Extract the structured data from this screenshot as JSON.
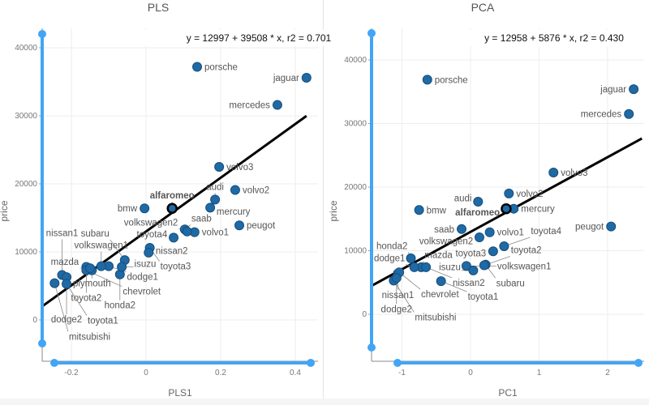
{
  "chart_data": [
    {
      "type": "scatter",
      "title": "PLS",
      "xlabel": "PLS1",
      "ylabel": "price",
      "equation": "y = 12997 + 39508 * x,    r2 = 0.701",
      "fit": {
        "intercept": 12997,
        "slope": 39508,
        "r2": 0.701
      },
      "xlim": [
        -0.28,
        0.43
      ],
      "ylim": [
        -6000,
        42000
      ],
      "xticks": [
        -0.2,
        0,
        0.2,
        0.4
      ],
      "xtick_labels": [
        "-0.2",
        "0",
        "0.2",
        "0.4"
      ],
      "yticks": [
        0,
        10000,
        20000,
        30000,
        40000
      ],
      "ytick_labels": [
        "0",
        "10000",
        "20000",
        "30000",
        "40000"
      ],
      "grid": true,
      "highlighted": "alfaromeo",
      "point_color": "#1f6aa5",
      "slider_color": "#42a5f5",
      "points": [
        {
          "name": "porsche",
          "x": 0.137,
          "y": 37200
        },
        {
          "name": "jaguar",
          "x": 0.43,
          "y": 35600
        },
        {
          "name": "mercedes",
          "x": 0.352,
          "y": 31600
        },
        {
          "name": "volvo3",
          "x": 0.196,
          "y": 22500
        },
        {
          "name": "volvo2",
          "x": 0.239,
          "y": 19100
        },
        {
          "name": "audi",
          "x": 0.185,
          "y": 17700
        },
        {
          "name": "bmw",
          "x": -0.004,
          "y": 16400
        },
        {
          "name": "alfaromeo",
          "x": 0.07,
          "y": 16400
        },
        {
          "name": "mercury",
          "x": 0.172,
          "y": 16500
        },
        {
          "name": "peugot",
          "x": 0.25,
          "y": 13900
        },
        {
          "name": "saab",
          "x": 0.104,
          "y": 13300
        },
        {
          "name": "volvo1",
          "x": 0.13,
          "y": 12900
        },
        {
          "name": "toyota4",
          "x": 0.074,
          "y": 12100
        },
        {
          "name": "volkswagen2",
          "x": 0.11,
          "y": 13000
        },
        {
          "name": "toyota3",
          "x": 0.01,
          "y": 10600
        },
        {
          "name": "honda2",
          "x": -0.07,
          "y": 6700
        },
        {
          "name": "dodge1",
          "x": -0.1,
          "y": 7900
        },
        {
          "name": "volkswagen1",
          "x": -0.12,
          "y": 7900
        },
        {
          "name": "subaru",
          "x": -0.057,
          "y": 8800
        },
        {
          "name": "isuzu",
          "x": -0.065,
          "y": 7800
        },
        {
          "name": "toyota2",
          "x": -0.16,
          "y": 7800
        },
        {
          "name": "chevrolet",
          "x": -0.16,
          "y": 7300
        },
        {
          "name": "plymouth",
          "x": -0.145,
          "y": 7300
        },
        {
          "name": "mazda",
          "x": -0.15,
          "y": 7600
        },
        {
          "name": "nissan2",
          "x": 0.007,
          "y": 9900
        },
        {
          "name": "nissan1",
          "x": -0.225,
          "y": 6600
        },
        {
          "name": "dodge2",
          "x": -0.213,
          "y": 6300
        },
        {
          "name": "mitsubishi",
          "x": -0.245,
          "y": 5400
        },
        {
          "name": "toyota1",
          "x": -0.213,
          "y": 5300
        }
      ]
    },
    {
      "type": "scatter",
      "title": "PCA",
      "xlabel": "PC1",
      "ylabel": "price",
      "equation": "y = 12958 + 5876 * x,    r2 = 0.430",
      "fit": {
        "intercept": 12958,
        "slope": 5876,
        "r2": 0.43
      },
      "xlim": [
        -1.45,
        2.5
      ],
      "ylim": [
        -7000,
        44000
      ],
      "xticks": [
        -1,
        0,
        1,
        2
      ],
      "xtick_labels": [
        "-1",
        "0",
        "1",
        "2"
      ],
      "yticks": [
        0,
        10000,
        20000,
        30000,
        40000
      ],
      "ytick_labels": [
        "0",
        "10000",
        "20000",
        "30000",
        "40000"
      ],
      "grid": true,
      "highlighted": "alfaromeo",
      "point_color": "#1f6aa5",
      "slider_color": "#42a5f5",
      "points": [
        {
          "name": "porsche",
          "x": -0.63,
          "y": 36900
        },
        {
          "name": "jaguar",
          "x": 2.38,
          "y": 35400
        },
        {
          "name": "mercedes",
          "x": 2.31,
          "y": 31500
        },
        {
          "name": "volvo3",
          "x": 1.21,
          "y": 22300
        },
        {
          "name": "volvo2",
          "x": 0.56,
          "y": 19000
        },
        {
          "name": "mercury",
          "x": 0.63,
          "y": 16600
        },
        {
          "name": "audi",
          "x": 0.11,
          "y": 17700
        },
        {
          "name": "alfaromeo",
          "x": 0.52,
          "y": 16600
        },
        {
          "name": "bmw",
          "x": -0.75,
          "y": 16400
        },
        {
          "name": "peugot",
          "x": 2.05,
          "y": 13800
        },
        {
          "name": "saab",
          "x": -0.13,
          "y": 13400
        },
        {
          "name": "volkswagen2",
          "x": 0.13,
          "y": 12100
        },
        {
          "name": "volvo1",
          "x": 0.28,
          "y": 12900
        },
        {
          "name": "toyota4",
          "x": 0.49,
          "y": 10700
        },
        {
          "name": "toyota3",
          "x": 0.33,
          "y": 9900
        },
        {
          "name": "honda2",
          "x": -0.87,
          "y": 8800
        },
        {
          "name": "mazda",
          "x": -0.72,
          "y": 7400
        },
        {
          "name": "dodge1",
          "x": -0.82,
          "y": 7400
        },
        {
          "name": "nissan2",
          "x": -0.65,
          "y": 7400
        },
        {
          "name": "volkswagen1",
          "x": -0.06,
          "y": 7600
        },
        {
          "name": "subaru",
          "x": 0.22,
          "y": 7800
        },
        {
          "name": "toyota2",
          "x": 0.2,
          "y": 7700
        },
        {
          "name": "isuzu",
          "x": 0.04,
          "y": 6900
        },
        {
          "name": "nissan1",
          "x": -1.06,
          "y": 6400
        },
        {
          "name": "chevrolet",
          "x": -1.04,
          "y": 6600
        },
        {
          "name": "mitsubishi",
          "x": -1.12,
          "y": 5300
        },
        {
          "name": "dodge2",
          "x": -1.08,
          "y": 5700
        },
        {
          "name": "toyota1",
          "x": -0.43,
          "y": 5200
        }
      ]
    }
  ]
}
